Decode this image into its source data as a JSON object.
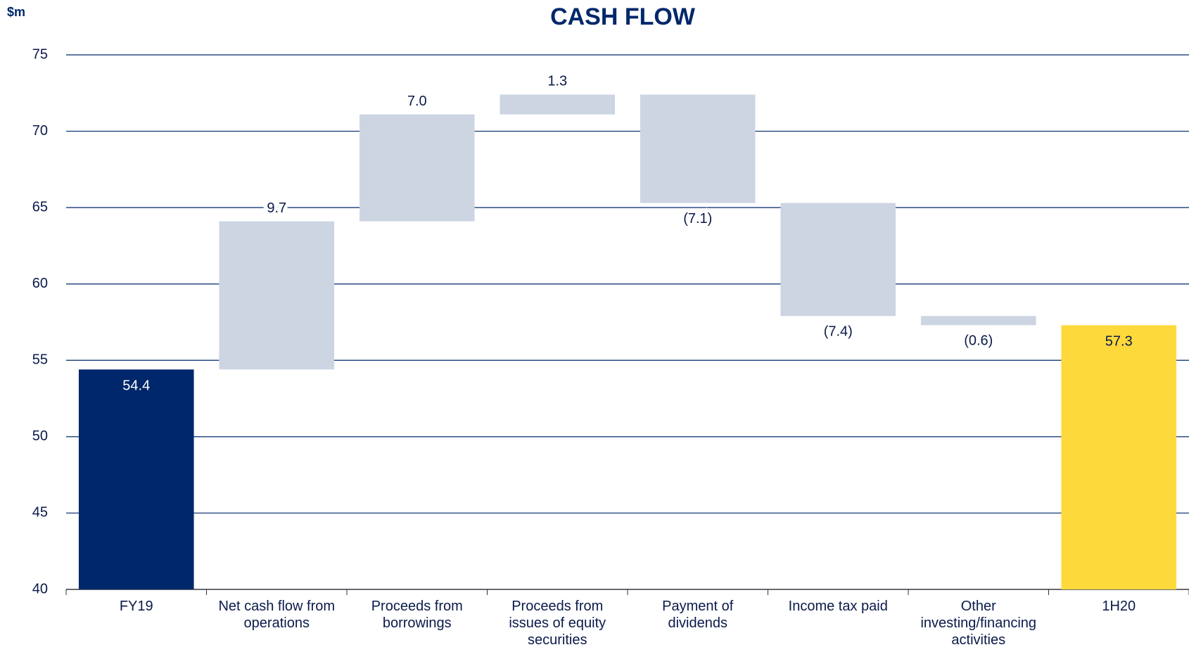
{
  "chart_data": {
    "type": "waterfall",
    "title": "CASH FLOW",
    "y_label": "$m",
    "categories": [
      "FY19",
      "Net cash flow from operations",
      "Proceeds from borrowings",
      "Proceeds from issues of equity securities",
      "Payment of dividends",
      "Income tax paid",
      "Other investing/financing activities",
      "1H20"
    ],
    "measures": [
      "absolute",
      "relative",
      "relative",
      "relative",
      "relative",
      "relative",
      "relative",
      "total"
    ],
    "values": [
      54.4,
      9.7,
      7.0,
      1.3,
      -7.1,
      -7.4,
      -0.6,
      57.3
    ],
    "value_labels": [
      "54.4",
      "9.7",
      "7.0",
      "1.3",
      "(7.1)",
      "(7.4)",
      "(0.6)",
      "57.3"
    ],
    "colors": [
      "#00276b",
      "#cdd5e3",
      "#cdd5e3",
      "#cdd5e3",
      "#cdd5e3",
      "#cdd5e3",
      "#cdd5e3",
      "#fdd93c"
    ],
    "ylim": [
      40,
      75
    ],
    "yticks": [
      40,
      45,
      50,
      55,
      60,
      65,
      70,
      75
    ],
    "grid": true
  }
}
